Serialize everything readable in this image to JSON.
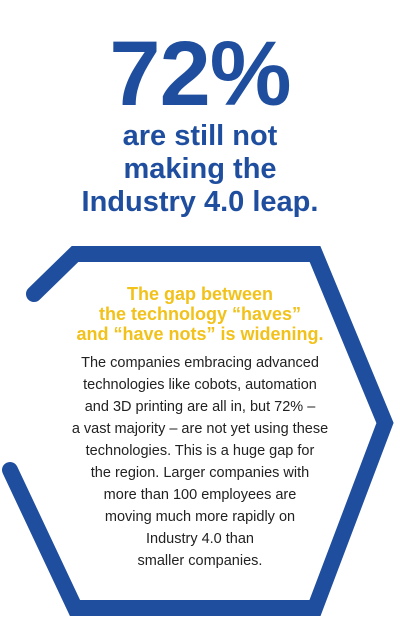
{
  "headline": {
    "stat": "72%",
    "subtitle": "are still not\nmaking the\nIndustry 4.0 leap."
  },
  "callout": {
    "highlight": "The gap between\nthe technology “haves”\nand “have nots” is widening.",
    "body": "The companies embracing advanced\ntechnologies like cobots, automation\nand 3D printing are all in, but 72% –\na vast majority – are not yet using these\ntechnologies. This is a huge gap for\nthe region. Larger companies with\nmore than 100 employees are\nmoving much more rapidly on\nIndustry 4.0 than\nsmaller companies."
  },
  "colors": {
    "primary": "#1f4e9e",
    "accent": "#f2c21b",
    "text": "#222222",
    "background": "#ffffff"
  }
}
